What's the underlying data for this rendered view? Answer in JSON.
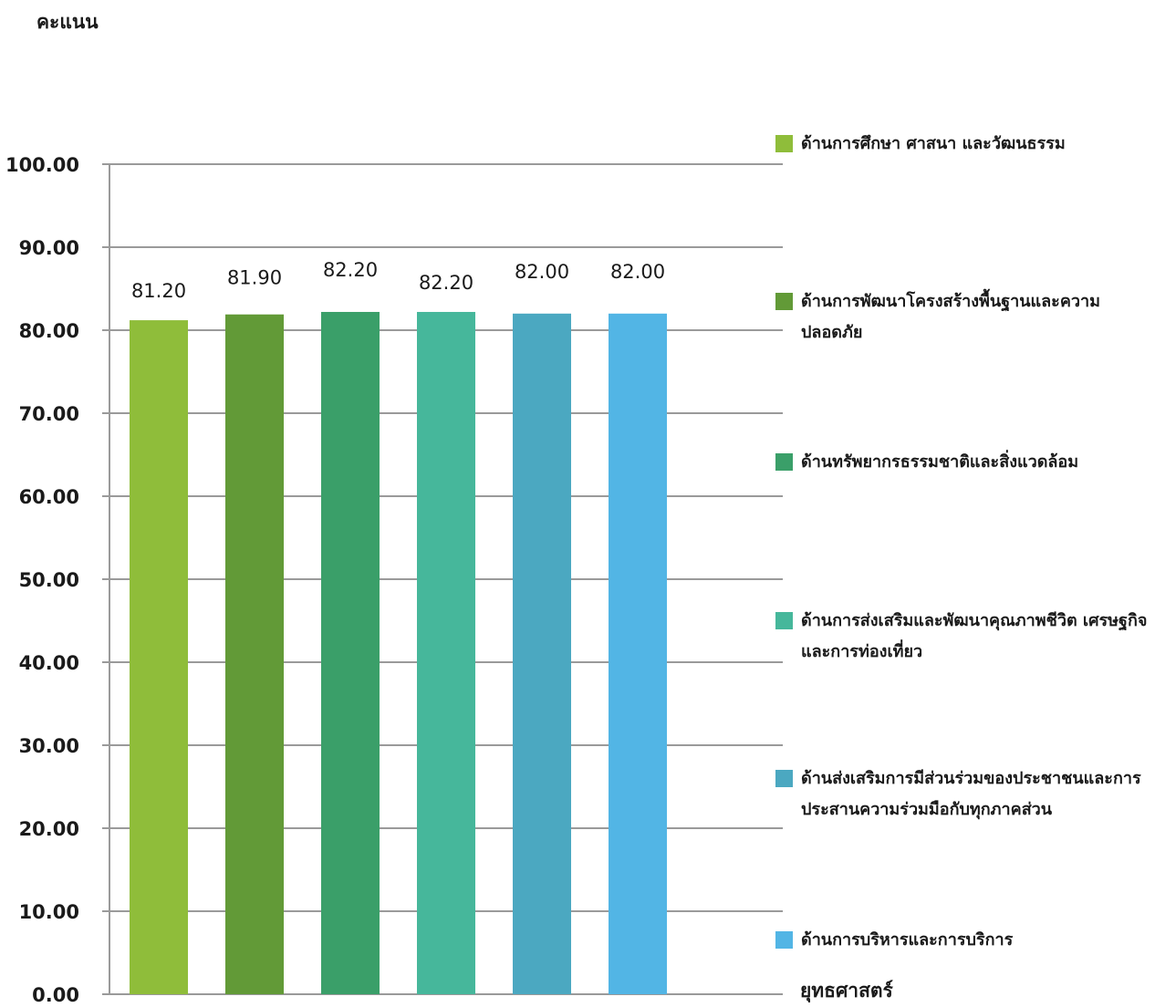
{
  "chart_data": {
    "type": "bar",
    "ylabel": "คะแนน",
    "xlabel": "ยุทธศาสตร์",
    "ylim": [
      0,
      100
    ],
    "yticks": [
      "0.00",
      "10.00",
      "20.00",
      "30.00",
      "40.00",
      "50.00",
      "60.00",
      "70.00",
      "80.00",
      "90.00",
      "100.00"
    ],
    "grid": true,
    "legend_position": "right",
    "series": [
      {
        "name": "ด้านการศึกษา ศาสนา และวัฒนธรรม",
        "value": 81.2,
        "value_label": "81.20",
        "color": "#8fbd3a"
      },
      {
        "name": "ด้านการพัฒนาโครงสร้างพื้นฐานและความปลอดภัย",
        "value": 81.9,
        "value_label": "81.90",
        "color": "#629a37"
      },
      {
        "name": "ด้านทรัพยากรธรรมชาติและสิ่งแวดล้อม",
        "value": 82.2,
        "value_label": "82.20",
        "color": "#3a9f69"
      },
      {
        "name": "ด้านการส่งเสริมและพัฒนาคุณภาพชีวิต เศรษฐกิจ และการท่องเที่ยว",
        "value": 82.2,
        "value_label": "82.20",
        "color": "#46b79b"
      },
      {
        "name": "ด้านส่งเสริมการมีส่วนร่วมของประชาชนและการประสานความร่วมมือกับทุกภาคส่วน",
        "value": 82.0,
        "value_label": "82.00",
        "color": "#4ba8c1"
      },
      {
        "name": "ด้านการบริหารและการบริการ",
        "value": 82.0,
        "value_label": "82.00",
        "color": "#52b5e5"
      }
    ]
  }
}
